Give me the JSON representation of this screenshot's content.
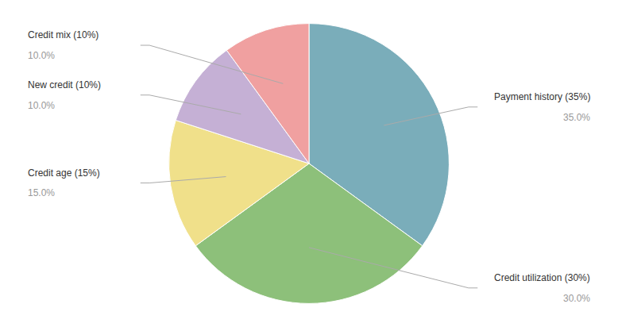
{
  "chart_data": {
    "type": "pie",
    "categories": [
      "Payment history (35%)",
      "Credit utilization (30%)",
      "Credit age (15%)",
      "New credit (10%)",
      "Credit mix (10%)"
    ],
    "values": [
      35,
      30,
      15,
      10,
      10
    ],
    "value_labels": [
      "35.0%",
      "30.0%",
      "15.0%",
      "10.0%",
      "10.0%"
    ],
    "colors": [
      "#7aadba",
      "#8dc07a",
      "#f0e08a",
      "#c5b0d5",
      "#f0a0a0"
    ],
    "data_labels": true
  }
}
